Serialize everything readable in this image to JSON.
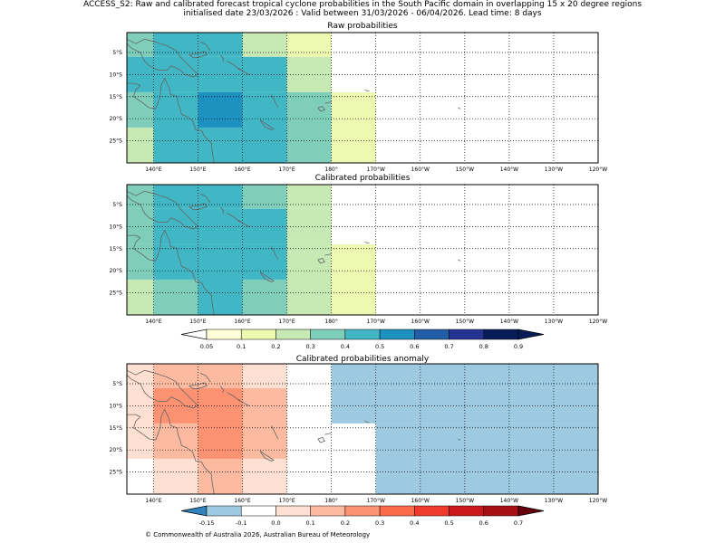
{
  "header": {
    "line1": "ACCESS_S2: Raw and calibrated forecast tropical cyclone probabilities in the South Pacific domain in overlapping 15 x 20 degree regions",
    "line2": "initialised date 23/03/2026 :  Valid between 31/03/2026 - 06/04/2026. Lead time: 8 days"
  },
  "footer": "© Commonwealth of Australia 2026, Australian Bureau of Meteorology",
  "chart_data": [
    {
      "type": "heatmap",
      "title": "Raw probabilities",
      "lon_range": [
        134,
        240
      ],
      "lat_range": [
        -30,
        -0.5
      ],
      "xticks": [
        140,
        150,
        160,
        170,
        180,
        190,
        200,
        210,
        220,
        230,
        240
      ],
      "xtick_labels": [
        "140°E",
        "150°E",
        "160°E",
        "170°E",
        "180°",
        "170°W",
        "160°W",
        "150°W",
        "140°W",
        "130°W",
        "120°W"
      ],
      "yticks": [
        -5,
        -10,
        -15,
        -20,
        -25
      ],
      "ytick_labels": [
        "5°S",
        "10°S",
        "15°S",
        "20°S",
        "25°S"
      ],
      "cells": [
        {
          "lon": [
            134,
            140
          ],
          "lat": [
            -0.5,
            -6
          ],
          "value": 0.32
        },
        {
          "lon": [
            140,
            160
          ],
          "lat": [
            -0.5,
            -6
          ],
          "value": 0.42
        },
        {
          "lon": [
            160,
            170
          ],
          "lat": [
            -0.5,
            -6
          ],
          "value": 0.25
        },
        {
          "lon": [
            170,
            180
          ],
          "lat": [
            -0.5,
            -6
          ],
          "value": 0.15
        },
        {
          "lon": [
            134,
            140
          ],
          "lat": [
            -6,
            -14
          ],
          "value": 0.42
        },
        {
          "lon": [
            140,
            160
          ],
          "lat": [
            -6,
            -14
          ],
          "value": 0.48
        },
        {
          "lon": [
            160,
            170
          ],
          "lat": [
            -6,
            -14
          ],
          "value": 0.42
        },
        {
          "lon": [
            170,
            180
          ],
          "lat": [
            -6,
            -14
          ],
          "value": 0.25
        },
        {
          "lon": [
            134,
            140
          ],
          "lat": [
            -14,
            -22
          ],
          "value": 0.32
        },
        {
          "lon": [
            140,
            150
          ],
          "lat": [
            -14,
            -22
          ],
          "value": 0.48
        },
        {
          "lon": [
            150,
            160
          ],
          "lat": [
            -14,
            -22
          ],
          "value": 0.55
        },
        {
          "lon": [
            160,
            170
          ],
          "lat": [
            -14,
            -22
          ],
          "value": 0.48
        },
        {
          "lon": [
            170,
            180
          ],
          "lat": [
            -14,
            -30
          ],
          "value": 0.32
        },
        {
          "lon": [
            180,
            190
          ],
          "lat": [
            -14,
            -30
          ],
          "value": 0.15
        },
        {
          "lon": [
            134,
            140
          ],
          "lat": [
            -22,
            -30
          ],
          "value": 0.25
        },
        {
          "lon": [
            140,
            170
          ],
          "lat": [
            -22,
            -30
          ],
          "value": 0.42
        }
      ]
    },
    {
      "type": "heatmap",
      "title": "Calibrated probabilities",
      "lon_range": [
        134,
        240
      ],
      "lat_range": [
        -30,
        -0.5
      ],
      "xticks": [
        140,
        150,
        160,
        170,
        180,
        190,
        200,
        210,
        220,
        230,
        240
      ],
      "xtick_labels": [
        "140°E",
        "150°E",
        "160°E",
        "170°E",
        "180°",
        "170°W",
        "160°W",
        "150°W",
        "140°W",
        "130°W",
        "120°W"
      ],
      "yticks": [
        -5,
        -10,
        -15,
        -20,
        -25
      ],
      "ytick_labels": [
        "5°S",
        "10°S",
        "15°S",
        "20°S",
        "25°S"
      ],
      "cells": [
        {
          "lon": [
            134,
            140
          ],
          "lat": [
            -0.5,
            -6
          ],
          "value": 0.32
        },
        {
          "lon": [
            140,
            160
          ],
          "lat": [
            -0.5,
            -6
          ],
          "value": 0.42
        },
        {
          "lon": [
            160,
            170
          ],
          "lat": [
            -0.5,
            -6
          ],
          "value": 0.32
        },
        {
          "lon": [
            170,
            180
          ],
          "lat": [
            -0.5,
            -6
          ],
          "value": 0.25
        },
        {
          "lon": [
            134,
            140
          ],
          "lat": [
            -6,
            -14
          ],
          "value": 0.32
        },
        {
          "lon": [
            140,
            160
          ],
          "lat": [
            -6,
            -14
          ],
          "value": 0.48
        },
        {
          "lon": [
            160,
            170
          ],
          "lat": [
            -6,
            -14
          ],
          "value": 0.42
        },
        {
          "lon": [
            170,
            180
          ],
          "lat": [
            -6,
            -14
          ],
          "value": 0.25
        },
        {
          "lon": [
            134,
            140
          ],
          "lat": [
            -14,
            -22
          ],
          "value": 0.32
        },
        {
          "lon": [
            140,
            150
          ],
          "lat": [
            -14,
            -22
          ],
          "value": 0.42
        },
        {
          "lon": [
            150,
            160
          ],
          "lat": [
            -14,
            -22
          ],
          "value": 0.48
        },
        {
          "lon": [
            160,
            170
          ],
          "lat": [
            -14,
            -22
          ],
          "value": 0.42
        },
        {
          "lon": [
            170,
            180
          ],
          "lat": [
            -14,
            -30
          ],
          "value": 0.25
        },
        {
          "lon": [
            180,
            190
          ],
          "lat": [
            -14,
            -30
          ],
          "value": 0.15
        },
        {
          "lon": [
            134,
            140
          ],
          "lat": [
            -22,
            -30
          ],
          "value": 0.25
        },
        {
          "lon": [
            140,
            150
          ],
          "lat": [
            -22,
            -30
          ],
          "value": 0.32
        },
        {
          "lon": [
            150,
            160
          ],
          "lat": [
            -22,
            -30
          ],
          "value": 0.42
        },
        {
          "lon": [
            160,
            170
          ],
          "lat": [
            -22,
            -30
          ],
          "value": 0.32
        }
      ],
      "colorbar": {
        "boundaries": [
          0.05,
          0.1,
          0.2,
          0.3,
          0.4,
          0.5,
          0.6,
          0.7,
          0.8,
          0.9
        ],
        "labels": [
          "0.05",
          "0.1",
          "0.2",
          "0.3",
          "0.4",
          "0.5",
          "0.6",
          "0.7",
          "0.8",
          "0.9"
        ],
        "extend": "both",
        "under_color": "#ffffff",
        "over_color": "#081d58",
        "colors": [
          "#ffffd9",
          "#edf8b1",
          "#c7e9b4",
          "#7fcdbb",
          "#41b6c4",
          "#1d91c0",
          "#225ea8",
          "#253494",
          "#081d58"
        ]
      }
    },
    {
      "type": "heatmap",
      "title": "Calibrated probabilities anomaly",
      "lon_range": [
        134,
        240
      ],
      "lat_range": [
        -30,
        -0.5
      ],
      "xticks": [
        140,
        150,
        160,
        170,
        180,
        190,
        200,
        210,
        220,
        230,
        240
      ],
      "xtick_labels": [
        "140°E",
        "150°E",
        "160°E",
        "170°E",
        "180°",
        "170°W",
        "160°W",
        "150°W",
        "140°W",
        "130°W",
        "120°W"
      ],
      "yticks": [
        -5,
        -10,
        -15,
        -20,
        -25
      ],
      "ytick_labels": [
        "5°S",
        "10°S",
        "15°S",
        "20°S",
        "25°S"
      ],
      "cells": [
        {
          "lon": [
            134,
            140
          ],
          "lat": [
            -0.5,
            -6
          ],
          "value": 0.05
        },
        {
          "lon": [
            140,
            160
          ],
          "lat": [
            -0.5,
            -6
          ],
          "value": 0.15
        },
        {
          "lon": [
            160,
            170
          ],
          "lat": [
            -0.5,
            -6
          ],
          "value": 0.05
        },
        {
          "lon": [
            170,
            180
          ],
          "lat": [
            -0.5,
            -6
          ],
          "value": -0.05
        },
        {
          "lon": [
            180,
            240
          ],
          "lat": [
            -0.5,
            -6
          ],
          "value": -0.12
        },
        {
          "lon": [
            134,
            140
          ],
          "lat": [
            -6,
            -14
          ],
          "value": 0.05
        },
        {
          "lon": [
            140,
            160
          ],
          "lat": [
            -6,
            -14
          ],
          "value": 0.25
        },
        {
          "lon": [
            160,
            170
          ],
          "lat": [
            -6,
            -14
          ],
          "value": 0.15
        },
        {
          "lon": [
            180,
            240
          ],
          "lat": [
            -6,
            -14
          ],
          "value": -0.12
        },
        {
          "lon": [
            134,
            140
          ],
          "lat": [
            -14,
            -22
          ],
          "value": 0.05
        },
        {
          "lon": [
            140,
            150
          ],
          "lat": [
            -14,
            -22
          ],
          "value": 0.15
        },
        {
          "lon": [
            150,
            160
          ],
          "lat": [
            -14,
            -22
          ],
          "value": 0.25
        },
        {
          "lon": [
            160,
            170
          ],
          "lat": [
            -14,
            -22
          ],
          "value": 0.15
        },
        {
          "lon": [
            180,
            190
          ],
          "lat": [
            -14,
            -30
          ],
          "value": -0.05
        },
        {
          "lon": [
            190,
            240
          ],
          "lat": [
            -14,
            -30
          ],
          "value": -0.12
        },
        {
          "lon": [
            140,
            150
          ],
          "lat": [
            -22,
            -30
          ],
          "value": 0.05
        },
        {
          "lon": [
            150,
            160
          ],
          "lat": [
            -22,
            -30
          ],
          "value": 0.15
        },
        {
          "lon": [
            160,
            170
          ],
          "lat": [
            -22,
            -30
          ],
          "value": 0.05
        }
      ],
      "colorbar": {
        "boundaries": [
          -0.15,
          -0.1,
          0.0,
          0.1,
          0.2,
          0.3,
          0.4,
          0.5,
          0.6,
          0.7
        ],
        "labels": [
          "-0.15",
          "-0.1",
          "0.0",
          "0.1",
          "0.2",
          "0.3",
          "0.4",
          "0.5",
          "0.6",
          "0.7"
        ],
        "extend": "both",
        "under_color": "#3182bd",
        "over_color": "#67000d",
        "colors": [
          "#9ecae1",
          "#ffffff",
          "#fee0d2",
          "#fcbba1",
          "#fc9272",
          "#fb6a4a",
          "#ef3b2c",
          "#cb181d",
          "#a50f15"
        ]
      }
    }
  ]
}
